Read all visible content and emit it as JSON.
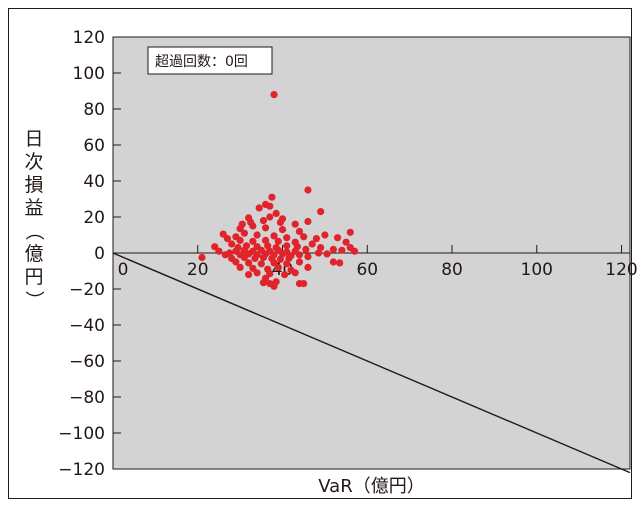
{
  "chart_data": {
    "type": "scatter",
    "xlabel": "VaR（億円）",
    "ylabel": "日次損益（億円）",
    "xlim": [
      0,
      122
    ],
    "ylim": [
      -120,
      120
    ],
    "x_ticks": [
      0,
      20,
      40,
      60,
      80,
      100,
      120
    ],
    "y_ticks": [
      120,
      100,
      80,
      60,
      40,
      20,
      0,
      -20,
      -40,
      -60,
      -80,
      -100,
      -120
    ],
    "x_tick_labels": [
      "0",
      "20",
      "40",
      "60",
      "80",
      "100",
      "120"
    ],
    "y_tick_labels": [
      "120",
      "100",
      "80",
      "60",
      "40",
      "20",
      "0",
      "−20",
      "−40",
      "−60",
      "−80",
      "−100",
      "−120"
    ],
    "annotation": "超過回数：0回",
    "grid": false,
    "threshold_line": {
      "x": [
        0,
        122
      ],
      "y": [
        0,
        -122
      ]
    },
    "series": [
      {
        "points": [
          [
            38.0,
            88.0
          ],
          [
            46.0,
            35.0
          ],
          [
            37.5,
            31.0
          ],
          [
            49.0,
            23.0
          ],
          [
            36.0,
            27.0
          ],
          [
            37.0,
            26.0
          ],
          [
            34.5,
            25.0
          ],
          [
            38.5,
            22.0
          ],
          [
            37.0,
            20.0
          ],
          [
            32.0,
            19.5
          ],
          [
            35.5,
            18.0
          ],
          [
            39.5,
            17.0
          ],
          [
            43.0,
            16.0
          ],
          [
            46.0,
            17.5
          ],
          [
            33.0,
            15.0
          ],
          [
            36.0,
            14.0
          ],
          [
            40.0,
            13.0
          ],
          [
            30.0,
            13.5
          ],
          [
            44.0,
            12.0
          ],
          [
            56.0,
            11.5
          ],
          [
            50.0,
            10.0
          ],
          [
            26.0,
            10.5
          ],
          [
            27.0,
            8.0
          ],
          [
            29.0,
            9.0
          ],
          [
            31.0,
            11.0
          ],
          [
            34.0,
            10.0
          ],
          [
            38.0,
            9.5
          ],
          [
            41.0,
            8.5
          ],
          [
            45.0,
            9.0
          ],
          [
            48.0,
            8.0
          ],
          [
            53.0,
            8.5
          ],
          [
            55.0,
            6.0
          ],
          [
            56.0,
            3.0
          ],
          [
            52.0,
            2.0
          ],
          [
            49.0,
            3.0
          ],
          [
            47.0,
            5.0
          ],
          [
            43.0,
            6.0
          ],
          [
            39.0,
            6.5
          ],
          [
            36.0,
            7.0
          ],
          [
            33.0,
            6.5
          ],
          [
            30.0,
            7.0
          ],
          [
            28.0,
            5.0
          ],
          [
            29.5,
            3.0
          ],
          [
            31.5,
            4.0
          ],
          [
            34.0,
            3.5
          ],
          [
            36.5,
            4.0
          ],
          [
            38.5,
            3.0
          ],
          [
            41.0,
            4.0
          ],
          [
            43.5,
            3.5
          ],
          [
            45.5,
            2.0
          ],
          [
            29.0,
            1.0
          ],
          [
            31.0,
            1.5
          ],
          [
            33.0,
            1.0
          ],
          [
            35.0,
            1.5
          ],
          [
            37.0,
            1.0
          ],
          [
            39.0,
            1.5
          ],
          [
            41.0,
            0.5
          ],
          [
            43.0,
            1.0
          ],
          [
            27.5,
            0.0
          ],
          [
            30.0,
            -1.0
          ],
          [
            32.0,
            -0.5
          ],
          [
            34.0,
            -1.0
          ],
          [
            36.0,
            -0.5
          ],
          [
            38.0,
            -1.0
          ],
          [
            40.0,
            -0.5
          ],
          [
            42.0,
            -1.5
          ],
          [
            44.0,
            -1.0
          ],
          [
            46.0,
            -2.0
          ],
          [
            21.0,
            -2.5
          ],
          [
            28.0,
            -3.0
          ],
          [
            31.0,
            -2.5
          ],
          [
            33.5,
            -3.0
          ],
          [
            35.5,
            -2.5
          ],
          [
            37.5,
            -3.0
          ],
          [
            39.5,
            -3.5
          ],
          [
            41.5,
            -3.0
          ],
          [
            29.0,
            -5.0
          ],
          [
            32.0,
            -5.5
          ],
          [
            35.0,
            -6.0
          ],
          [
            38.0,
            -5.5
          ],
          [
            41.0,
            -6.0
          ],
          [
            44.0,
            -5.0
          ],
          [
            52.0,
            -5.0
          ],
          [
            53.5,
            -5.5
          ],
          [
            30.0,
            -8.0
          ],
          [
            33.0,
            -8.5
          ],
          [
            36.5,
            -9.0
          ],
          [
            39.0,
            -8.0
          ],
          [
            42.0,
            -9.5
          ],
          [
            46.0,
            -8.0
          ],
          [
            34.0,
            -11.0
          ],
          [
            37.0,
            -11.5
          ],
          [
            40.5,
            -12.0
          ],
          [
            43.0,
            -11.0
          ],
          [
            36.0,
            -14.0
          ],
          [
            38.5,
            -16.0
          ],
          [
            35.5,
            -16.5
          ],
          [
            37.0,
            -17.0
          ],
          [
            44.0,
            -17.0
          ],
          [
            45.0,
            -17.0
          ],
          [
            38.0,
            -18.5
          ],
          [
            32.0,
            -12.0
          ],
          [
            25.0,
            1.0
          ],
          [
            26.5,
            -1.0
          ],
          [
            48.5,
            0.0
          ],
          [
            50.5,
            -0.5
          ],
          [
            54.0,
            1.5
          ],
          [
            57.0,
            1.0
          ],
          [
            24.0,
            3.5
          ],
          [
            30.5,
            16.0
          ],
          [
            32.5,
            17.0
          ],
          [
            40.0,
            19.0
          ]
        ]
      }
    ]
  }
}
